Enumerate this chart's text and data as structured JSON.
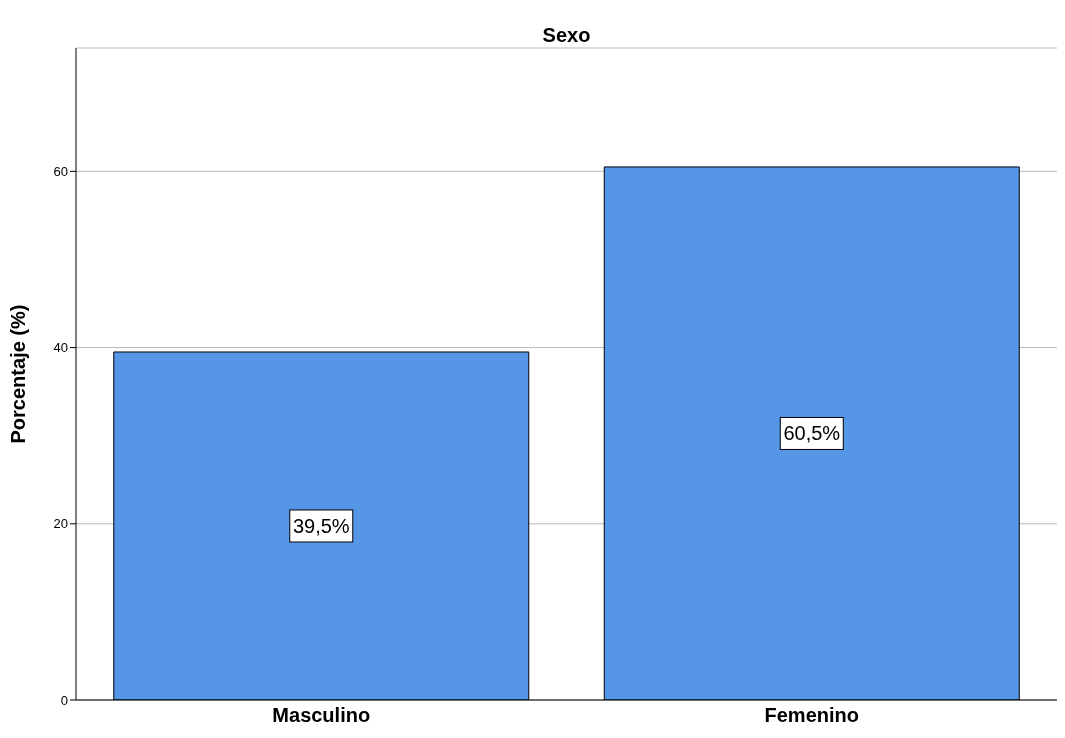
{
  "chart_data": {
    "type": "bar",
    "title": "Sexo",
    "ylabel": "Porcentaje (%)",
    "categories": [
      "Masculino",
      "Femenino"
    ],
    "values": [
      39.5,
      60.5
    ],
    "value_labels": [
      "39,5%",
      "60,5%"
    ],
    "color": "#5596e6",
    "ylim": [
      0,
      74
    ],
    "yticks": [
      0,
      20,
      40,
      60
    ],
    "grid": "y"
  }
}
